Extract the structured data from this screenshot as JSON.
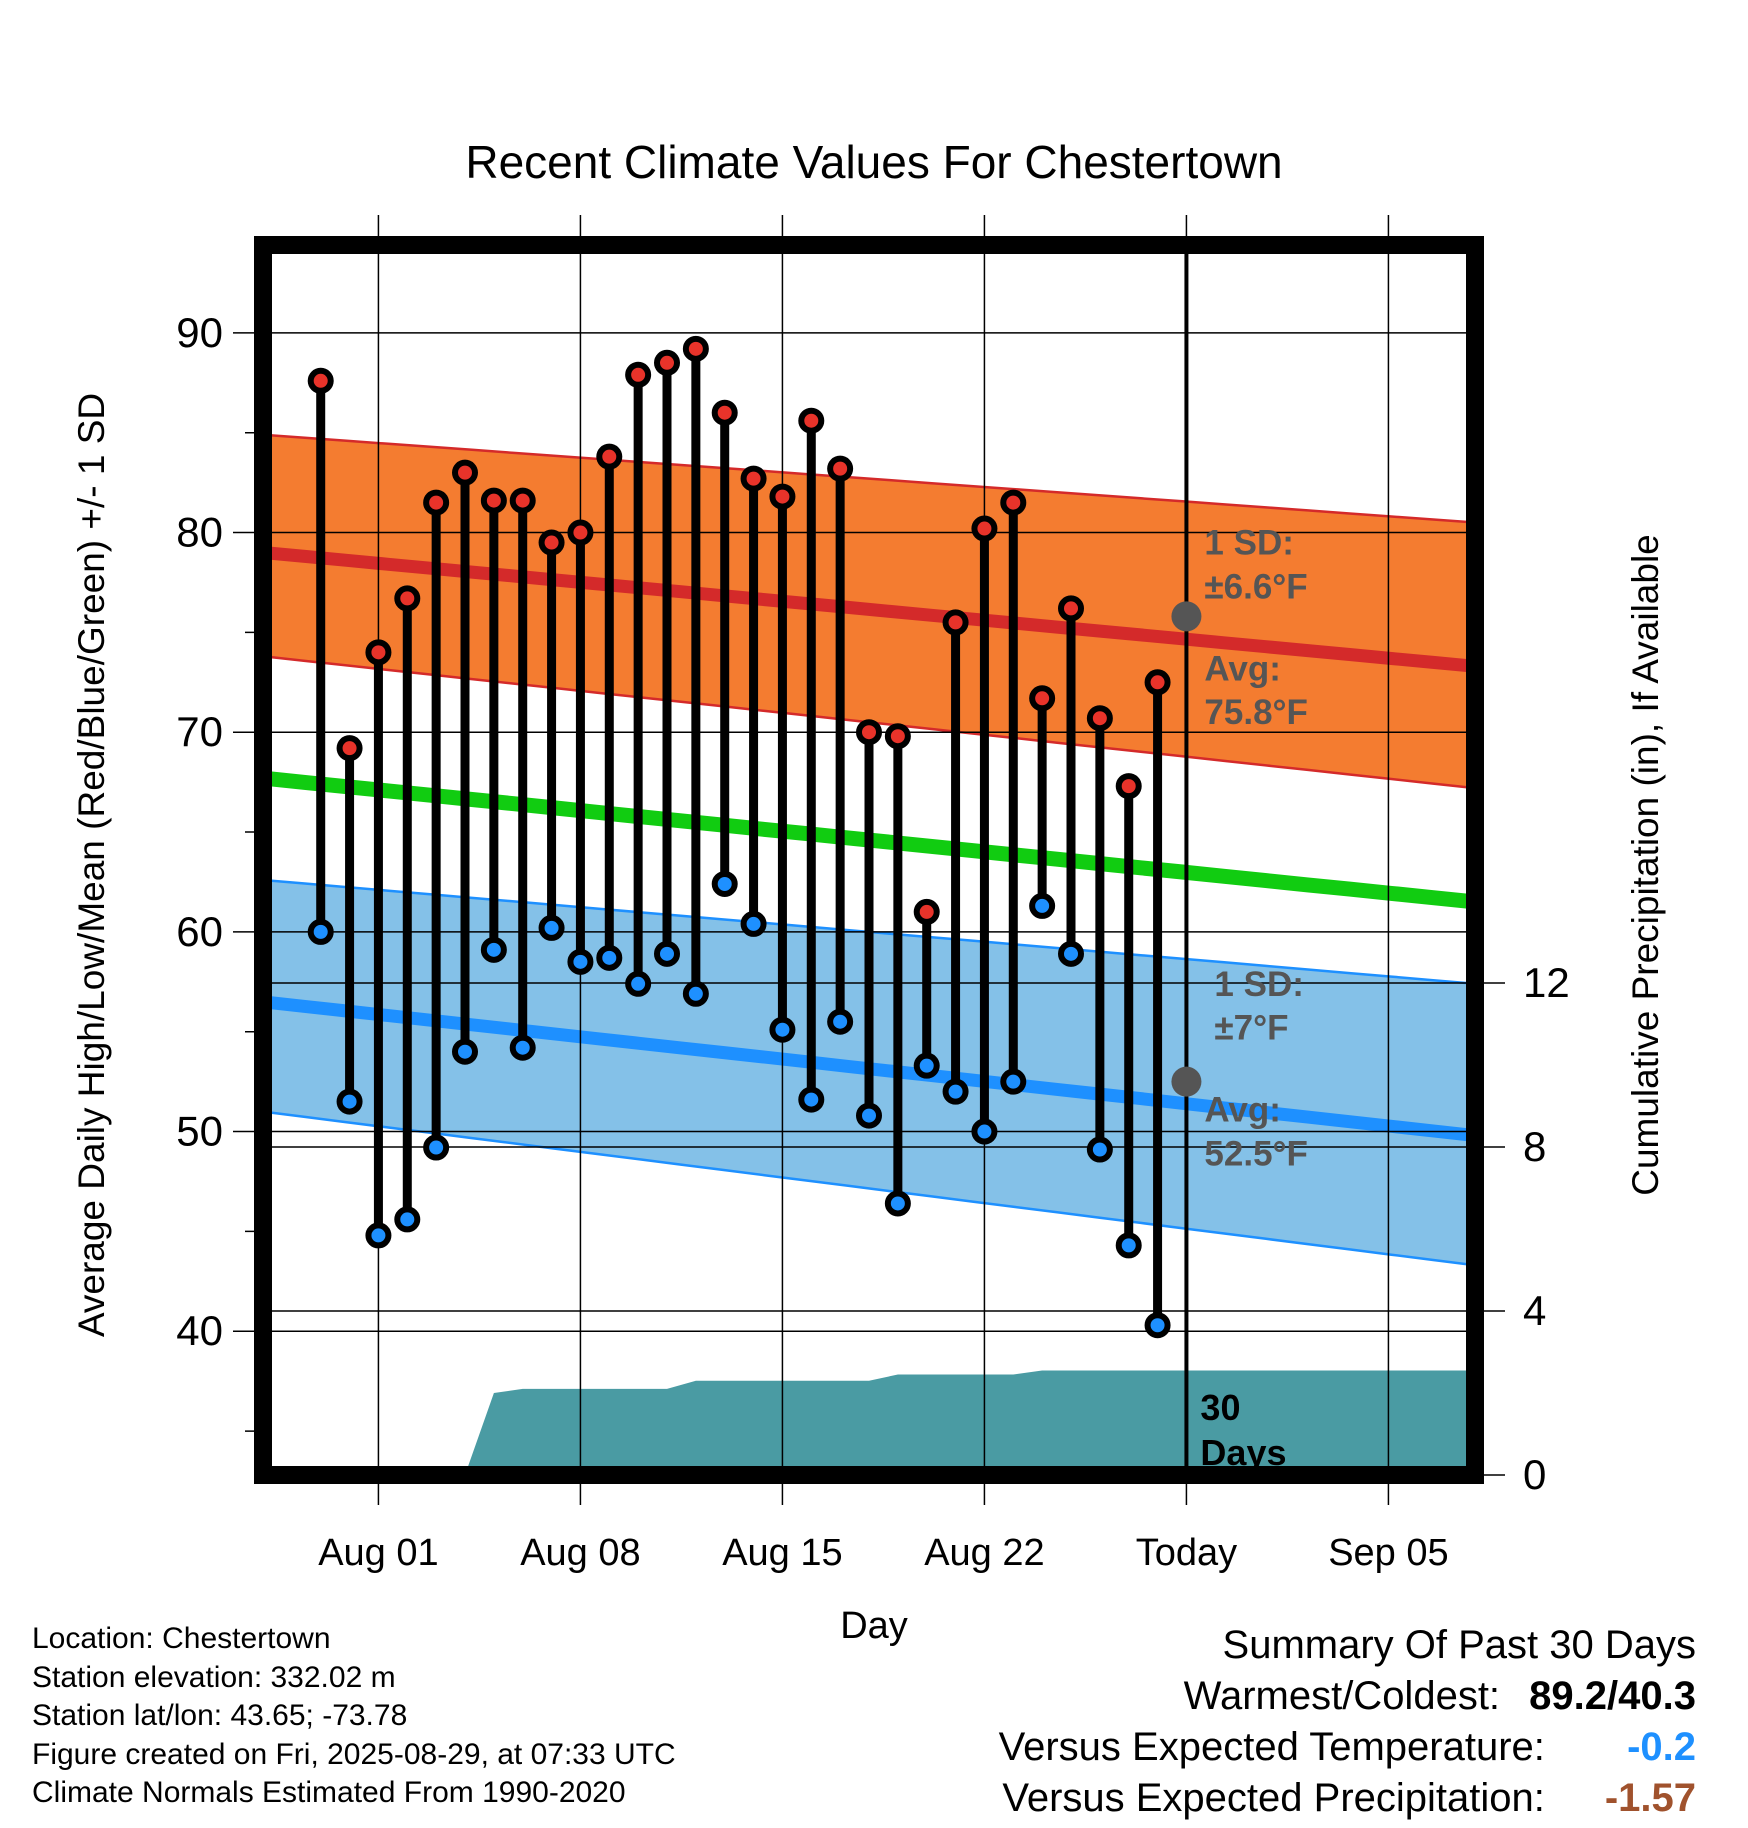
{
  "chart_data": {
    "type": "line",
    "title": "Recent Climate Values For Chestertown",
    "xlabel": "Day",
    "ylabel": "Average Daily High/Low/Mean (Red/Blue/Green) +/- 1 SD",
    "y2label": "Cumulative Precipitation (in), If Available",
    "xlim": [
      "2025-07-28",
      "2025-09-08"
    ],
    "ylim": [
      32.8,
      94.4
    ],
    "y2lim": [
      0,
      30
    ],
    "x_ticks": [
      "Aug 01",
      "Aug 08",
      "Aug 15",
      "Aug 22",
      "Today",
      "Sep 05"
    ],
    "y_ticks": [
      40,
      50,
      60,
      70,
      80,
      90
    ],
    "y2_ticks": [
      0,
      4,
      8,
      12
    ],
    "grid": true,
    "today_line": "Today",
    "today_label": "30\nDays",
    "series": [
      {
        "name": "High",
        "color": "#e8332a",
        "values": [
          87.6,
          69.2,
          74.0,
          76.7,
          81.5,
          83.0,
          81.6,
          81.6,
          79.5,
          80.0,
          83.8,
          87.9,
          88.5,
          89.2,
          86.0,
          82.7,
          81.8,
          85.6,
          83.2,
          70.0,
          69.8,
          61.0,
          75.5,
          80.2,
          81.5,
          71.7,
          76.2,
          70.7,
          67.3,
          72.5
        ]
      },
      {
        "name": "Low",
        "color": "#1e90ff",
        "values": [
          60.0,
          51.5,
          44.8,
          45.6,
          49.2,
          54.0,
          59.1,
          54.2,
          60.2,
          58.5,
          58.7,
          57.4,
          58.9,
          56.9,
          62.4,
          60.4,
          55.1,
          51.6,
          55.5,
          50.8,
          46.4,
          53.3,
          52.0,
          50.0,
          52.5,
          61.3,
          58.9,
          49.1,
          44.3,
          40.3
        ]
      }
    ],
    "first_day": "2025-07-30",
    "normals": {
      "high_avg": {
        "start": 79.0,
        "end": 73.3
      },
      "high_sd_upper": {
        "start": 84.9,
        "end": 80.5
      },
      "high_sd_lower": {
        "start": 73.8,
        "end": 67.2
      },
      "mean_avg": {
        "start": 67.7,
        "end": 61.5
      },
      "low_avg": {
        "start": 56.5,
        "end": 49.8
      },
      "low_sd_upper": {
        "start": 62.6,
        "end": 57.4
      },
      "low_sd_lower": {
        "start": 51.0,
        "end": 43.3
      }
    },
    "precip": {
      "days": [
        "2025-07-28",
        "2025-08-04",
        "2025-08-05",
        "2025-08-06",
        "2025-08-11",
        "2025-08-12",
        "2025-08-18",
        "2025-08-19",
        "2025-08-23",
        "2025-08-24",
        "2025-09-08"
      ],
      "values": [
        0,
        0,
        2.0,
        2.1,
        2.1,
        2.3,
        2.3,
        2.45,
        2.45,
        2.55,
        2.55
      ]
    },
    "annotations": {
      "high_sd": {
        "line1": "1 SD:",
        "line2": "±6.6°F"
      },
      "high_avg": {
        "line1": "Avg:",
        "line2": "75.8°F",
        "value": 75.8
      },
      "low_sd": {
        "line1": "1 SD:",
        "line2": "±7°F"
      },
      "low_avg": {
        "line1": "Avg:",
        "line2": "52.5°F",
        "value": 52.5
      }
    },
    "colors": {
      "high_band": "#f47c30",
      "high_avg": "#d42a2a",
      "mean": "#11cc11",
      "low_band": "#84c1e8",
      "low_avg": "#1e90ff",
      "precip": "#4a9ba3",
      "annotation": "#555555"
    }
  },
  "info": {
    "location": "Location: Chestertown",
    "elevation": "Station elevation: 332.02 m",
    "latlon": "Station lat/lon: 43.65; -73.78",
    "created": "Figure created on Fri, 2025-08-29, at 07:33 UTC",
    "normals": "Climate Normals Estimated From 1990-2020"
  },
  "summary": {
    "heading": "Summary Of Past 30 Days",
    "warm_cold_label": "Warmest/Coldest:",
    "warm_cold_value": "89.2/40.3",
    "temp_label": "Versus Expected Temperature:",
    "temp_value": "-0.2",
    "precip_label": "Versus Expected Precipitation:",
    "precip_value": "-1.57"
  }
}
